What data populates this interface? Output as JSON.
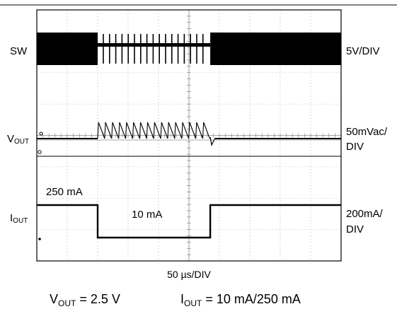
{
  "chart_data": {
    "type": "line",
    "title": "",
    "grid": true,
    "axes": {
      "x_divisions": 10,
      "y_divisions": 8,
      "x_label": "50 µs/DIV"
    },
    "channels": [
      {
        "name": "SW",
        "scale": "5V/DIV"
      },
      {
        "name_main": "V",
        "name_sub": "OUT",
        "scale_line1": "50mVac/",
        "scale_line2": "DIV"
      },
      {
        "name_main": "I",
        "name_sub": "OUT",
        "scale_line1": "200mA/",
        "scale_line2": "DIV"
      }
    ],
    "annotations": {
      "high_current": "250 mA",
      "low_current": "10 mA"
    },
    "load_step": {
      "high_mA": 250,
      "low_mA": 10,
      "step_down_div": 2.0,
      "step_up_div": 5.7
    },
    "footer": {
      "vout_main": "V",
      "vout_sub": "OUT",
      "vout_value": " = 2.5 V",
      "iout_main": "I",
      "iout_sub": "OUT",
      "iout_value": " = 10 mA/250 mA"
    }
  }
}
